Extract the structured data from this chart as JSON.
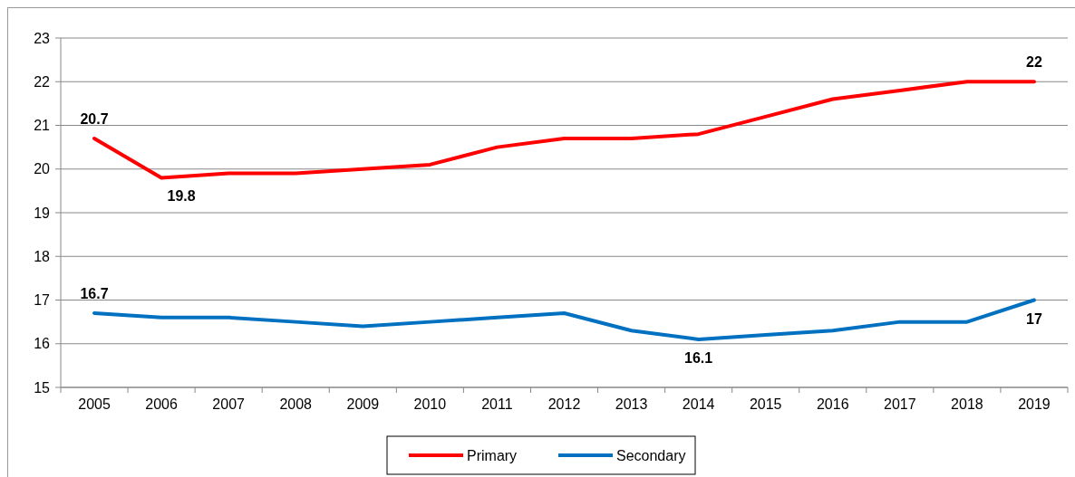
{
  "chart_data": {
    "type": "line",
    "categories": [
      "2005",
      "2006",
      "2007",
      "2008",
      "2009",
      "2010",
      "2011",
      "2012",
      "2013",
      "2014",
      "2015",
      "2016",
      "2017",
      "2018",
      "2019"
    ],
    "series": [
      {
        "name": "Primary",
        "color": "#ff0000",
        "values": [
          20.7,
          19.8,
          19.9,
          19.9,
          20.0,
          20.1,
          20.5,
          20.7,
          20.7,
          20.8,
          21.2,
          21.6,
          21.8,
          22.0,
          22.0
        ],
        "value_labels": [
          "20.7",
          "19.8",
          null,
          null,
          null,
          null,
          null,
          null,
          null,
          null,
          null,
          null,
          null,
          null,
          "22"
        ]
      },
      {
        "name": "Secondary",
        "color": "#0070c0",
        "values": [
          16.7,
          16.6,
          16.6,
          16.5,
          16.4,
          16.5,
          16.6,
          16.7,
          16.3,
          16.1,
          16.2,
          16.3,
          16.5,
          16.5,
          17.0
        ],
        "value_labels": [
          "16.7",
          null,
          null,
          null,
          null,
          null,
          null,
          null,
          null,
          "16.1",
          null,
          null,
          null,
          null,
          "17"
        ]
      }
    ],
    "ylim": [
      15,
      23
    ],
    "yticks": [
      15,
      16,
      17,
      18,
      19,
      20,
      21,
      22,
      23
    ],
    "grid": "y",
    "legend": "bottom",
    "marker": "none",
    "line_style": "solid"
  }
}
